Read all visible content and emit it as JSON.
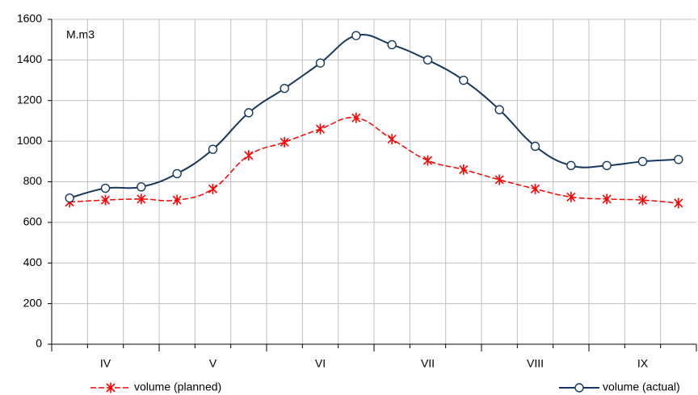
{
  "chart_data": {
    "type": "line",
    "annotation": "M.m3",
    "categories": [
      null,
      "IV",
      null,
      null,
      "V",
      null,
      null,
      "VI",
      null,
      null,
      "VII",
      null,
      null,
      "VIII",
      null,
      null,
      "IX",
      null
    ],
    "series": [
      {
        "name": "volume (planned)",
        "color": "#ff0000",
        "marker": "star",
        "values": [
          700,
          710,
          715,
          710,
          765,
          930,
          995,
          1060,
          1115,
          1010,
          905,
          860,
          810,
          765,
          725,
          715,
          710,
          695
        ]
      },
      {
        "name": "volume (actual)",
        "color": "#17375e",
        "marker": "circle",
        "values": [
          720,
          768,
          775,
          840,
          960,
          1140,
          1260,
          1385,
          1520,
          1475,
          1400,
          1300,
          1155,
          975,
          880,
          880,
          900,
          910
        ]
      }
    ],
    "ylim": [
      0,
      1600
    ],
    "yticks": [
      0,
      200,
      400,
      600,
      800,
      1000,
      1200,
      1400,
      1600
    ],
    "grid": true
  }
}
